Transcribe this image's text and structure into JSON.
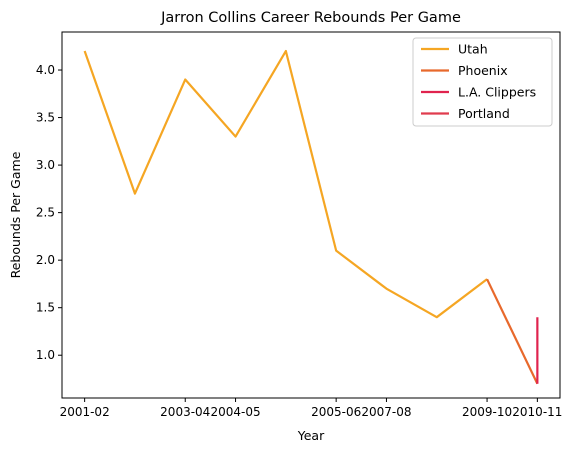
{
  "chart_data": {
    "type": "line",
    "title": "Jarron Collins Career Rebounds Per Game",
    "xlabel": "Year",
    "ylabel": "Rebounds Per Game",
    "x_tick_labels": [
      "2001-02",
      "2003-04",
      "2004-05",
      "2005-06",
      "2007-08",
      "2009-10",
      "2010-11"
    ],
    "x_tick_positions": [
      0,
      2,
      3,
      5,
      6,
      8,
      9
    ],
    "ylim": [
      0.55,
      4.4
    ],
    "yticks": [
      "1.0",
      "1.5",
      "2.0",
      "2.5",
      "3.0",
      "3.5",
      "4.0"
    ],
    "ytick_values": [
      1.0,
      1.5,
      2.0,
      2.5,
      3.0,
      3.5,
      4.0
    ],
    "xlim": [
      -0.45,
      9.45
    ],
    "legend_position": "top-right",
    "grid": false,
    "series": [
      {
        "name": "Utah",
        "color": "#f5a623",
        "points": [
          [
            0,
            4.2
          ],
          [
            1,
            2.7
          ],
          [
            2,
            3.9
          ],
          [
            3,
            3.3
          ],
          [
            4,
            4.2
          ],
          [
            5,
            2.1
          ],
          [
            6,
            1.7
          ],
          [
            7,
            1.4
          ],
          [
            8,
            1.8
          ]
        ]
      },
      {
        "name": "Phoenix",
        "color": "#e8692c",
        "points": [
          [
            8,
            1.8
          ],
          [
            9,
            0.7
          ]
        ]
      },
      {
        "name": "L.A. Clippers",
        "color": "#e0234e",
        "points": [
          [
            9,
            0.7
          ],
          [
            9,
            1.4
          ]
        ]
      },
      {
        "name": "Portland",
        "color": "#e03c4e",
        "points": [
          [
            9,
            1.4
          ],
          [
            9,
            1.4
          ]
        ]
      }
    ]
  }
}
